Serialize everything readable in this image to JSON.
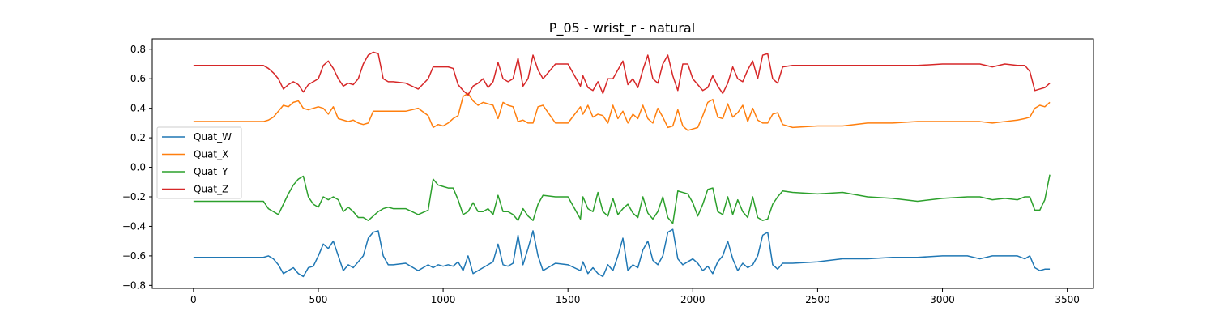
{
  "chart_data": {
    "type": "line",
    "title": "P_05 - wrist_r - natural",
    "xlabel": "",
    "ylabel": "",
    "xlim": [
      -165,
      3605
    ],
    "ylim": [
      -0.82,
      0.87
    ],
    "x_ticks": [
      0,
      500,
      1000,
      1500,
      2000,
      2500,
      3000,
      3500
    ],
    "y_ticks": [
      -0.8,
      -0.6,
      -0.4,
      -0.2,
      0.0,
      0.2,
      0.4,
      0.6,
      0.8
    ],
    "x_tick_labels": [
      "0",
      "500",
      "1000",
      "1500",
      "2000",
      "2500",
      "3000",
      "3500"
    ],
    "y_tick_labels": [
      "−0.8",
      "−0.6",
      "−0.4",
      "−0.2",
      "0.0",
      "0.2",
      "0.4",
      "0.6",
      "0.8"
    ],
    "grid": false,
    "legend_position": "center-left",
    "series": [
      {
        "name": "Quat_W",
        "color": "#1f77b4",
        "x": [
          0,
          100,
          200,
          280,
          300,
          320,
          340,
          360,
          380,
          400,
          420,
          440,
          460,
          480,
          500,
          520,
          540,
          560,
          580,
          600,
          620,
          640,
          660,
          680,
          700,
          720,
          740,
          760,
          780,
          800,
          850,
          900,
          940,
          960,
          980,
          1000,
          1020,
          1040,
          1060,
          1080,
          1100,
          1120,
          1140,
          1160,
          1180,
          1200,
          1220,
          1240,
          1260,
          1280,
          1300,
          1320,
          1340,
          1360,
          1380,
          1400,
          1450,
          1500,
          1550,
          1560,
          1580,
          1600,
          1620,
          1640,
          1660,
          1680,
          1700,
          1720,
          1740,
          1760,
          1780,
          1800,
          1820,
          1840,
          1860,
          1880,
          1900,
          1920,
          1940,
          1960,
          1980,
          2000,
          2020,
          2040,
          2060,
          2080,
          2100,
          2120,
          2140,
          2160,
          2180,
          2200,
          2220,
          2240,
          2260,
          2280,
          2300,
          2320,
          2340,
          2360,
          2400,
          2500,
          2600,
          2700,
          2800,
          2900,
          3000,
          3100,
          3150,
          3200,
          3250,
          3300,
          3330,
          3350,
          3370,
          3390,
          3410,
          3430
        ],
        "y": [
          -0.61,
          -0.61,
          -0.61,
          -0.61,
          -0.6,
          -0.62,
          -0.66,
          -0.72,
          -0.7,
          -0.68,
          -0.72,
          -0.74,
          -0.68,
          -0.67,
          -0.6,
          -0.52,
          -0.55,
          -0.5,
          -0.6,
          -0.7,
          -0.66,
          -0.68,
          -0.64,
          -0.6,
          -0.48,
          -0.44,
          -0.43,
          -0.6,
          -0.66,
          -0.66,
          -0.65,
          -0.7,
          -0.66,
          -0.68,
          -0.66,
          -0.67,
          -0.66,
          -0.67,
          -0.64,
          -0.7,
          -0.6,
          -0.72,
          -0.7,
          -0.68,
          -0.66,
          -0.64,
          -0.52,
          -0.66,
          -0.67,
          -0.65,
          -0.46,
          -0.66,
          -0.55,
          -0.43,
          -0.6,
          -0.7,
          -0.65,
          -0.66,
          -0.7,
          -0.64,
          -0.72,
          -0.68,
          -0.72,
          -0.74,
          -0.66,
          -0.7,
          -0.6,
          -0.48,
          -0.7,
          -0.66,
          -0.68,
          -0.56,
          -0.5,
          -0.63,
          -0.66,
          -0.6,
          -0.44,
          -0.42,
          -0.62,
          -0.66,
          -0.64,
          -0.62,
          -0.65,
          -0.7,
          -0.67,
          -0.72,
          -0.64,
          -0.6,
          -0.5,
          -0.62,
          -0.7,
          -0.65,
          -0.68,
          -0.66,
          -0.6,
          -0.46,
          -0.44,
          -0.66,
          -0.69,
          -0.65,
          -0.65,
          -0.64,
          -0.62,
          -0.62,
          -0.61,
          -0.61,
          -0.6,
          -0.6,
          -0.62,
          -0.6,
          -0.6,
          -0.6,
          -0.62,
          -0.6,
          -0.68,
          -0.7,
          -0.69,
          -0.69
        ]
      },
      {
        "name": "Quat_X",
        "color": "#ff7f0e",
        "x": [
          0,
          100,
          200,
          280,
          300,
          320,
          340,
          360,
          380,
          400,
          420,
          440,
          460,
          480,
          500,
          520,
          540,
          560,
          580,
          600,
          620,
          640,
          660,
          680,
          700,
          720,
          740,
          760,
          780,
          800,
          850,
          900,
          940,
          960,
          980,
          1000,
          1020,
          1040,
          1060,
          1080,
          1100,
          1120,
          1140,
          1160,
          1180,
          1200,
          1220,
          1240,
          1260,
          1280,
          1300,
          1320,
          1340,
          1360,
          1380,
          1400,
          1450,
          1500,
          1550,
          1560,
          1580,
          1600,
          1620,
          1640,
          1660,
          1680,
          1700,
          1720,
          1740,
          1760,
          1780,
          1800,
          1820,
          1840,
          1860,
          1880,
          1900,
          1920,
          1940,
          1960,
          1980,
          2000,
          2020,
          2040,
          2060,
          2080,
          2100,
          2120,
          2140,
          2160,
          2180,
          2200,
          2220,
          2240,
          2260,
          2280,
          2300,
          2320,
          2340,
          2360,
          2400,
          2500,
          2600,
          2700,
          2800,
          2900,
          3000,
          3100,
          3150,
          3200,
          3250,
          3300,
          3330,
          3350,
          3370,
          3390,
          3410,
          3430
        ],
        "y": [
          0.31,
          0.31,
          0.31,
          0.31,
          0.32,
          0.34,
          0.38,
          0.42,
          0.41,
          0.44,
          0.45,
          0.4,
          0.39,
          0.4,
          0.41,
          0.4,
          0.36,
          0.41,
          0.33,
          0.32,
          0.31,
          0.32,
          0.3,
          0.29,
          0.3,
          0.38,
          0.38,
          0.38,
          0.38,
          0.38,
          0.38,
          0.4,
          0.35,
          0.27,
          0.29,
          0.28,
          0.3,
          0.33,
          0.35,
          0.48,
          0.5,
          0.45,
          0.42,
          0.44,
          0.43,
          0.42,
          0.33,
          0.44,
          0.42,
          0.41,
          0.31,
          0.32,
          0.3,
          0.3,
          0.41,
          0.42,
          0.3,
          0.3,
          0.41,
          0.36,
          0.42,
          0.34,
          0.36,
          0.35,
          0.3,
          0.42,
          0.33,
          0.38,
          0.3,
          0.36,
          0.33,
          0.42,
          0.33,
          0.3,
          0.4,
          0.34,
          0.27,
          0.28,
          0.39,
          0.28,
          0.25,
          0.26,
          0.27,
          0.35,
          0.44,
          0.46,
          0.34,
          0.33,
          0.43,
          0.34,
          0.37,
          0.42,
          0.31,
          0.4,
          0.32,
          0.3,
          0.3,
          0.36,
          0.37,
          0.29,
          0.27,
          0.28,
          0.28,
          0.3,
          0.3,
          0.31,
          0.31,
          0.31,
          0.31,
          0.3,
          0.31,
          0.32,
          0.33,
          0.34,
          0.4,
          0.42,
          0.41,
          0.44
        ]
      },
      {
        "name": "Quat_Y",
        "color": "#2ca02c",
        "x": [
          0,
          100,
          200,
          280,
          300,
          320,
          340,
          360,
          380,
          400,
          420,
          440,
          460,
          480,
          500,
          520,
          540,
          560,
          580,
          600,
          620,
          640,
          660,
          680,
          700,
          720,
          740,
          760,
          780,
          800,
          850,
          900,
          940,
          960,
          980,
          1000,
          1020,
          1040,
          1060,
          1080,
          1100,
          1120,
          1140,
          1160,
          1180,
          1200,
          1220,
          1240,
          1260,
          1280,
          1300,
          1320,
          1340,
          1360,
          1380,
          1400,
          1450,
          1500,
          1550,
          1560,
          1580,
          1600,
          1620,
          1640,
          1660,
          1680,
          1700,
          1720,
          1740,
          1760,
          1780,
          1800,
          1820,
          1840,
          1860,
          1880,
          1900,
          1920,
          1940,
          1960,
          1980,
          2000,
          2020,
          2040,
          2060,
          2080,
          2100,
          2120,
          2140,
          2160,
          2180,
          2200,
          2220,
          2240,
          2260,
          2280,
          2300,
          2320,
          2340,
          2360,
          2400,
          2500,
          2600,
          2700,
          2800,
          2900,
          3000,
          3100,
          3150,
          3200,
          3250,
          3300,
          3330,
          3350,
          3370,
          3390,
          3410,
          3430
        ],
        "y": [
          -0.23,
          -0.23,
          -0.23,
          -0.23,
          -0.28,
          -0.3,
          -0.32,
          -0.25,
          -0.18,
          -0.12,
          -0.08,
          -0.06,
          -0.2,
          -0.25,
          -0.27,
          -0.2,
          -0.22,
          -0.2,
          -0.22,
          -0.3,
          -0.27,
          -0.3,
          -0.34,
          -0.34,
          -0.36,
          -0.33,
          -0.3,
          -0.28,
          -0.27,
          -0.28,
          -0.28,
          -0.32,
          -0.29,
          -0.08,
          -0.12,
          -0.13,
          -0.14,
          -0.14,
          -0.22,
          -0.32,
          -0.3,
          -0.24,
          -0.3,
          -0.3,
          -0.28,
          -0.32,
          -0.19,
          -0.3,
          -0.3,
          -0.32,
          -0.36,
          -0.28,
          -0.33,
          -0.36,
          -0.25,
          -0.19,
          -0.2,
          -0.2,
          -0.35,
          -0.2,
          -0.28,
          -0.3,
          -0.17,
          -0.3,
          -0.33,
          -0.21,
          -0.32,
          -0.28,
          -0.25,
          -0.31,
          -0.34,
          -0.2,
          -0.31,
          -0.35,
          -0.3,
          -0.2,
          -0.34,
          -0.38,
          -0.16,
          -0.17,
          -0.18,
          -0.24,
          -0.33,
          -0.25,
          -0.15,
          -0.14,
          -0.3,
          -0.32,
          -0.2,
          -0.32,
          -0.22,
          -0.3,
          -0.34,
          -0.2,
          -0.34,
          -0.36,
          -0.35,
          -0.25,
          -0.2,
          -0.16,
          -0.17,
          -0.18,
          -0.17,
          -0.2,
          -0.21,
          -0.23,
          -0.21,
          -0.2,
          -0.2,
          -0.22,
          -0.21,
          -0.22,
          -0.2,
          -0.2,
          -0.29,
          -0.29,
          -0.22,
          -0.05
        ]
      },
      {
        "name": "Quat_Z",
        "color": "#d62728",
        "x": [
          0,
          100,
          200,
          280,
          300,
          320,
          340,
          360,
          380,
          400,
          420,
          440,
          460,
          480,
          500,
          520,
          540,
          560,
          580,
          600,
          620,
          640,
          660,
          680,
          700,
          720,
          740,
          760,
          780,
          800,
          850,
          900,
          940,
          960,
          980,
          1000,
          1020,
          1040,
          1060,
          1080,
          1100,
          1120,
          1140,
          1160,
          1180,
          1200,
          1220,
          1240,
          1260,
          1280,
          1300,
          1320,
          1340,
          1360,
          1380,
          1400,
          1450,
          1500,
          1550,
          1560,
          1580,
          1600,
          1620,
          1640,
          1660,
          1680,
          1700,
          1720,
          1740,
          1760,
          1780,
          1800,
          1820,
          1840,
          1860,
          1880,
          1900,
          1920,
          1940,
          1960,
          1980,
          2000,
          2020,
          2040,
          2060,
          2080,
          2100,
          2120,
          2140,
          2160,
          2180,
          2200,
          2220,
          2240,
          2260,
          2280,
          2300,
          2320,
          2340,
          2360,
          2400,
          2500,
          2600,
          2700,
          2800,
          2900,
          3000,
          3100,
          3150,
          3200,
          3250,
          3300,
          3330,
          3350,
          3370,
          3390,
          3410,
          3430
        ],
        "y": [
          0.69,
          0.69,
          0.69,
          0.69,
          0.67,
          0.64,
          0.6,
          0.53,
          0.56,
          0.58,
          0.56,
          0.51,
          0.56,
          0.58,
          0.6,
          0.69,
          0.72,
          0.67,
          0.6,
          0.55,
          0.57,
          0.56,
          0.6,
          0.7,
          0.76,
          0.78,
          0.77,
          0.6,
          0.58,
          0.58,
          0.57,
          0.53,
          0.6,
          0.68,
          0.68,
          0.68,
          0.68,
          0.67,
          0.56,
          0.52,
          0.49,
          0.55,
          0.57,
          0.6,
          0.54,
          0.58,
          0.71,
          0.6,
          0.58,
          0.6,
          0.74,
          0.55,
          0.6,
          0.76,
          0.66,
          0.6,
          0.7,
          0.7,
          0.55,
          0.62,
          0.54,
          0.52,
          0.58,
          0.5,
          0.6,
          0.6,
          0.66,
          0.72,
          0.56,
          0.6,
          0.54,
          0.66,
          0.76,
          0.6,
          0.57,
          0.7,
          0.76,
          0.62,
          0.52,
          0.7,
          0.7,
          0.6,
          0.56,
          0.52,
          0.54,
          0.62,
          0.55,
          0.5,
          0.57,
          0.68,
          0.6,
          0.58,
          0.66,
          0.72,
          0.6,
          0.76,
          0.77,
          0.6,
          0.57,
          0.68,
          0.69,
          0.69,
          0.69,
          0.69,
          0.69,
          0.69,
          0.7,
          0.7,
          0.7,
          0.68,
          0.7,
          0.69,
          0.69,
          0.65,
          0.52,
          0.53,
          0.54,
          0.57
        ]
      }
    ]
  }
}
